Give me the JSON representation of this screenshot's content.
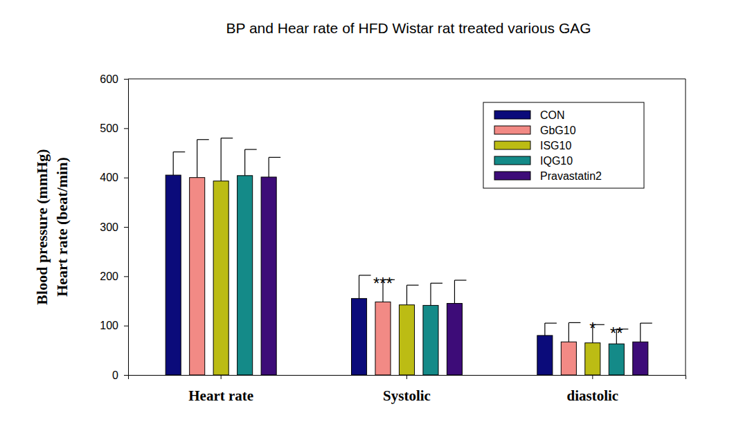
{
  "chart_data": {
    "type": "bar",
    "title": "BP and Hear rate of HFD Wistar rat treated various GAG",
    "y_label": [
      "Blood pressure (mmHg)",
      "Heart rate (beat/min)"
    ],
    "categories": [
      "Heart rate",
      "Systolic",
      "diastolic"
    ],
    "series": [
      {
        "name": "CON",
        "color": "#0b0b7a",
        "values": [
          405,
          155,
          80
        ],
        "errors": [
          47,
          47,
          25
        ]
      },
      {
        "name": "GbG10",
        "color": "#f28a85",
        "values": [
          400,
          148,
          67
        ],
        "errors": [
          77,
          45,
          39
        ]
      },
      {
        "name": "ISG10",
        "color": "#bcbc14",
        "values": [
          393,
          142,
          65
        ],
        "errors": [
          87,
          40,
          37
        ]
      },
      {
        "name": "IQG10",
        "color": "#148a88",
        "values": [
          404,
          141,
          63
        ],
        "errors": [
          53,
          45,
          30
        ]
      },
      {
        "name": "Pravastatin2",
        "color": "#3d0c78",
        "values": [
          401,
          145,
          67
        ],
        "errors": [
          40,
          47,
          38
        ]
      }
    ],
    "annotations": [
      {
        "text": "***",
        "category": "Systolic",
        "series": "GbG10"
      },
      {
        "text": "*",
        "category": "diastolic",
        "series": "ISG10"
      },
      {
        "text": "**",
        "category": "diastolic",
        "series": "IQG10"
      }
    ],
    "ylim": [
      0,
      600
    ],
    "yticks": [
      0,
      100,
      200,
      300,
      400,
      500,
      600
    ],
    "legend": "top-right",
    "grid": false
  }
}
